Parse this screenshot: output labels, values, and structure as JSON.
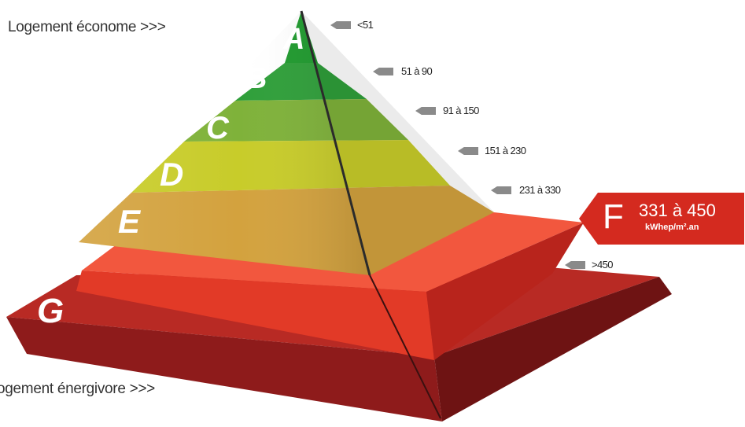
{
  "labels": {
    "top": "Logement économe >>>",
    "bottom": "ogement énergivore >>>"
  },
  "classes": [
    {
      "letter": "A",
      "range": "<51",
      "color": "#1f9a2e"
    },
    {
      "letter": "B",
      "range": "51 à 90",
      "color": "#2f9f3a"
    },
    {
      "letter": "C",
      "range": "91 à 150",
      "color": "#7fb23a"
    },
    {
      "letter": "D",
      "range": "151 à 230",
      "color": "#c8cc2a"
    },
    {
      "letter": "E",
      "range": "231 à 330",
      "color": "#d3a23e"
    },
    {
      "letter": "F",
      "range": "",
      "color": "#e0392a"
    },
    {
      "letter": "G",
      "range": ">450",
      "color": "#a21f1f"
    }
  ],
  "rating": {
    "letter": "F",
    "range": "331 à 450",
    "unit": "kWhep/m².an",
    "color": "#d42a1f"
  }
}
